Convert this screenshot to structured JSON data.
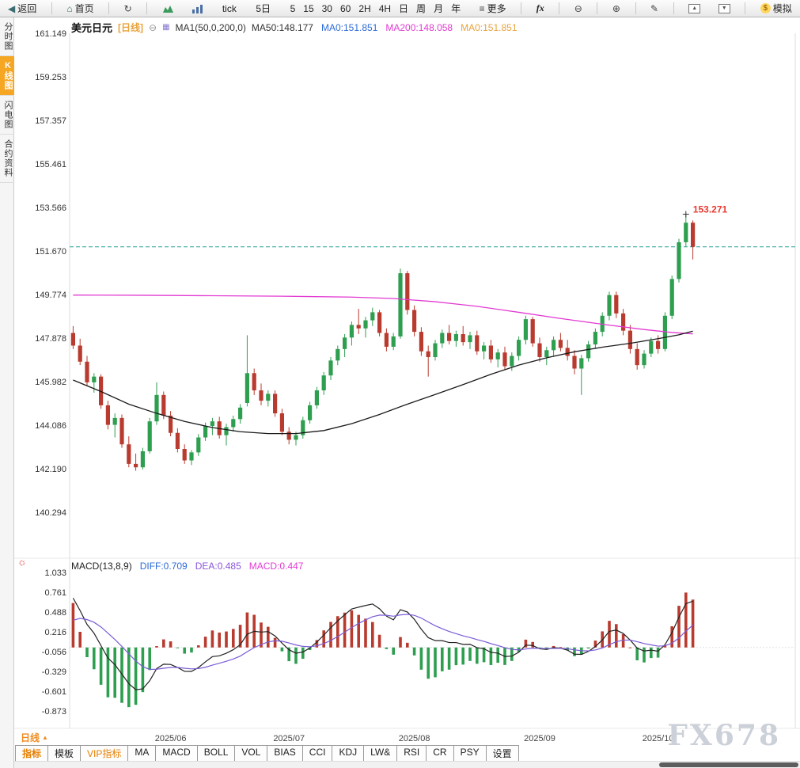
{
  "icons": {
    "back": "◀",
    "home": "⌂",
    "refresh": "↻",
    "more": "≡",
    "zoom_out": "⊖",
    "zoom_in": "⊕",
    "draw": "✎",
    "collapse": "⊖",
    "ma_panel": "▦",
    "sun": "☼",
    "dollar": "$",
    "up_triangle": "▲",
    "down_triangle": "▼"
  },
  "toolbar_top": {
    "back": "返回",
    "home": "首页",
    "tick": "tick",
    "five_day": "5日",
    "periods": [
      "5",
      "15",
      "30",
      "60",
      "2H",
      "4H",
      "日",
      "周",
      "月",
      "年"
    ],
    "more": "更多",
    "fx": "fx",
    "simulate": "模拟"
  },
  "sidebar": {
    "items": [
      {
        "label": "分时图",
        "active": false
      },
      {
        "label": "K线图",
        "active": true
      },
      {
        "label": "闪电图",
        "active": false
      },
      {
        "label": "合约资料",
        "active": false
      }
    ]
  },
  "chart_header": {
    "symbol": "美元日元",
    "period_tag": "[日线]",
    "ma_settings": "MA1(50,0,200,0)",
    "ma_items": [
      {
        "label": "MA50:148.177",
        "color": "#333333"
      },
      {
        "label": "MA0:151.851",
        "color": "#2e6bd6"
      },
      {
        "label": "MA200:148.058",
        "color": "#e23ad2"
      },
      {
        "label": "MA0:151.851",
        "color": "#e8a33d"
      }
    ]
  },
  "macd_header": {
    "title": "MACD(13,8,9)",
    "items": [
      {
        "label": "DIFF:0.709",
        "color": "#2e6bd6"
      },
      {
        "label": "DEA:0.485",
        "color": "#8a56d8"
      },
      {
        "label": "MACD:0.447",
        "color": "#e23ad2"
      }
    ]
  },
  "bottom": {
    "period_label": "日线",
    "tabs": [
      {
        "label": "指标",
        "state": "active"
      },
      {
        "label": "模板",
        "state": "normal"
      },
      {
        "label": "VIP指标",
        "state": "vip"
      },
      {
        "label": "MA",
        "state": "normal"
      },
      {
        "label": "MACD",
        "state": "normal"
      },
      {
        "label": "BOLL",
        "state": "normal"
      },
      {
        "label": "VOL",
        "state": "normal"
      },
      {
        "label": "BIAS",
        "state": "normal"
      },
      {
        "label": "CCI",
        "state": "normal"
      },
      {
        "label": "KDJ",
        "state": "normal"
      },
      {
        "label": "LW&",
        "state": "normal"
      },
      {
        "label": "RSI",
        "state": "normal"
      },
      {
        "label": "CR",
        "state": "normal"
      },
      {
        "label": "PSY",
        "state": "normal"
      },
      {
        "label": "设置",
        "state": "normal"
      }
    ]
  },
  "watermark": "FX678",
  "chart_data": {
    "type": "candlestick+macd",
    "title": "美元日元 日线 (USD/JPY Daily)",
    "y_axis_labels": [
      "161.149",
      "159.253",
      "157.357",
      "155.461",
      "153.566",
      "151.670",
      "149.774",
      "147.878",
      "145.982",
      "144.086",
      "142.190",
      "140.294"
    ],
    "macd_axis_labels": [
      "1.033",
      "0.761",
      "0.488",
      "0.216",
      "-0.056",
      "-0.329",
      "-0.601",
      "-0.873"
    ],
    "x_axis_labels": [
      {
        "label": "2025/06",
        "index": 14
      },
      {
        "label": "2025/07",
        "index": 31
      },
      {
        "label": "2025/08",
        "index": 49
      },
      {
        "label": "2025/09",
        "index": 67
      },
      {
        "label": "2025/10",
        "index": 84
      }
    ],
    "current_price": 151.851,
    "high_marker": {
      "index": 88,
      "price": 153.271,
      "label": "153.271"
    },
    "indicator_values": {
      "ma50": 148.177,
      "ma200": 148.058,
      "diff": 0.709,
      "dea": 0.485,
      "macd": 0.447
    },
    "candles": [
      [
        148.1,
        148.4,
        147.4,
        147.55
      ],
      [
        147.55,
        147.85,
        146.7,
        146.85
      ],
      [
        146.85,
        147.1,
        145.8,
        145.95
      ],
      [
        145.95,
        146.35,
        145.5,
        146.2
      ],
      [
        146.2,
        146.3,
        144.8,
        144.95
      ],
      [
        144.95,
        145.15,
        143.9,
        144.1
      ],
      [
        144.1,
        144.6,
        143.55,
        144.4
      ],
      [
        144.4,
        144.55,
        143.1,
        143.25
      ],
      [
        143.25,
        143.6,
        142.25,
        142.4
      ],
      [
        142.4,
        142.85,
        142.1,
        142.25
      ],
      [
        142.25,
        143.1,
        142.15,
        142.95
      ],
      [
        142.95,
        144.4,
        142.85,
        144.25
      ],
      [
        144.25,
        145.95,
        144.1,
        145.4
      ],
      [
        145.4,
        145.55,
        144.35,
        144.5
      ],
      [
        144.5,
        144.7,
        143.6,
        143.75
      ],
      [
        143.75,
        143.95,
        142.9,
        143.05
      ],
      [
        143.05,
        143.25,
        142.4,
        142.55
      ],
      [
        142.55,
        143.0,
        142.35,
        142.9
      ],
      [
        142.9,
        143.7,
        142.75,
        143.55
      ],
      [
        143.55,
        144.2,
        143.4,
        144.05
      ],
      [
        144.05,
        144.4,
        143.65,
        144.25
      ],
      [
        144.25,
        144.45,
        143.5,
        143.65
      ],
      [
        143.65,
        144.15,
        143.2,
        144.0
      ],
      [
        144.0,
        144.5,
        143.8,
        144.35
      ],
      [
        144.35,
        145.0,
        144.15,
        144.85
      ],
      [
        145.05,
        148.0,
        144.9,
        146.35
      ],
      [
        146.35,
        146.55,
        145.4,
        145.6
      ],
      [
        145.6,
        145.9,
        144.95,
        145.15
      ],
      [
        145.15,
        145.6,
        144.9,
        145.45
      ],
      [
        145.45,
        145.6,
        144.45,
        144.6
      ],
      [
        144.6,
        144.8,
        143.65,
        143.8
      ],
      [
        143.8,
        144.0,
        143.25,
        143.45
      ],
      [
        143.45,
        143.8,
        143.2,
        143.65
      ],
      [
        143.65,
        144.45,
        143.5,
        144.3
      ],
      [
        144.3,
        145.1,
        144.15,
        144.95
      ],
      [
        144.95,
        145.75,
        144.8,
        145.6
      ],
      [
        145.6,
        146.4,
        145.4,
        146.25
      ],
      [
        146.25,
        147.05,
        146.05,
        146.9
      ],
      [
        146.9,
        147.55,
        146.7,
        147.4
      ],
      [
        147.4,
        148.05,
        147.05,
        147.9
      ],
      [
        147.9,
        148.6,
        147.55,
        148.45
      ],
      [
        148.45,
        149.15,
        148.05,
        148.3
      ],
      [
        148.3,
        148.8,
        147.9,
        148.65
      ],
      [
        148.65,
        149.2,
        148.4,
        149.0
      ],
      [
        149.0,
        149.1,
        147.95,
        148.1
      ],
      [
        148.1,
        148.3,
        147.3,
        147.5
      ],
      [
        147.5,
        148.1,
        147.35,
        147.95
      ],
      [
        147.95,
        150.9,
        147.85,
        150.7
      ],
      [
        150.7,
        150.8,
        148.9,
        149.1
      ],
      [
        149.1,
        149.3,
        147.95,
        148.15
      ],
      [
        148.15,
        148.35,
        147.1,
        147.3
      ],
      [
        147.3,
        147.55,
        146.2,
        147.05
      ],
      [
        147.05,
        147.8,
        146.9,
        147.65
      ],
      [
        147.65,
        148.25,
        147.45,
        148.1
      ],
      [
        148.1,
        148.45,
        147.6,
        147.75
      ],
      [
        147.75,
        148.2,
        147.5,
        148.05
      ],
      [
        148.05,
        148.4,
        147.55,
        147.7
      ],
      [
        147.7,
        148.15,
        147.4,
        148.0
      ],
      [
        148.0,
        148.2,
        147.15,
        147.3
      ],
      [
        147.3,
        147.7,
        146.95,
        147.55
      ],
      [
        147.55,
        147.8,
        146.8,
        146.95
      ],
      [
        146.95,
        147.4,
        146.6,
        147.25
      ],
      [
        147.25,
        147.5,
        146.5,
        146.65
      ],
      [
        146.65,
        147.25,
        146.45,
        147.1
      ],
      [
        147.1,
        147.95,
        146.9,
        147.8
      ],
      [
        147.8,
        148.85,
        147.6,
        148.7
      ],
      [
        148.7,
        148.8,
        147.5,
        147.65
      ],
      [
        147.65,
        147.9,
        146.85,
        147.05
      ],
      [
        147.05,
        147.5,
        146.7,
        147.35
      ],
      [
        147.35,
        147.95,
        147.1,
        147.8
      ],
      [
        147.8,
        148.1,
        147.3,
        147.45
      ],
      [
        147.45,
        147.8,
        146.9,
        147.1
      ],
      [
        147.1,
        147.35,
        146.3,
        146.55
      ],
      [
        146.55,
        147.15,
        145.4,
        147.0
      ],
      [
        147.0,
        147.75,
        146.85,
        147.6
      ],
      [
        147.6,
        148.3,
        147.4,
        148.15
      ],
      [
        148.15,
        149.0,
        147.95,
        148.85
      ],
      [
        148.85,
        149.9,
        148.65,
        149.75
      ],
      [
        149.75,
        149.9,
        148.75,
        148.95
      ],
      [
        148.95,
        149.15,
        148.0,
        148.2
      ],
      [
        148.2,
        148.45,
        147.2,
        147.4
      ],
      [
        147.4,
        147.65,
        146.5,
        146.7
      ],
      [
        146.7,
        147.35,
        146.55,
        147.2
      ],
      [
        147.2,
        147.9,
        147.05,
        147.75
      ],
      [
        147.75,
        148.0,
        147.2,
        147.4
      ],
      [
        147.4,
        149.0,
        147.3,
        148.85
      ],
      [
        148.85,
        150.6,
        148.7,
        150.45
      ],
      [
        150.45,
        152.2,
        150.3,
        152.05
      ],
      [
        152.05,
        153.27,
        151.85,
        152.9
      ],
      [
        152.9,
        153.0,
        151.3,
        151.85
      ]
    ],
    "ma50_points": [
      [
        0,
        146.05
      ],
      [
        4,
        145.55
      ],
      [
        8,
        145.0
      ],
      [
        12,
        144.6
      ],
      [
        16,
        144.25
      ],
      [
        20,
        143.98
      ],
      [
        24,
        143.8
      ],
      [
        28,
        143.72
      ],
      [
        32,
        143.72
      ],
      [
        36,
        143.85
      ],
      [
        40,
        144.15
      ],
      [
        44,
        144.55
      ],
      [
        48,
        145.0
      ],
      [
        52,
        145.42
      ],
      [
        56,
        145.85
      ],
      [
        60,
        146.3
      ],
      [
        64,
        146.7
      ],
      [
        68,
        147.02
      ],
      [
        72,
        147.28
      ],
      [
        76,
        147.48
      ],
      [
        80,
        147.65
      ],
      [
        84,
        147.85
      ],
      [
        87,
        148.02
      ],
      [
        89,
        148.18
      ]
    ],
    "ma200_points": [
      [
        0,
        149.75
      ],
      [
        10,
        149.74
      ],
      [
        20,
        149.72
      ],
      [
        30,
        149.7
      ],
      [
        40,
        149.66
      ],
      [
        46,
        149.6
      ],
      [
        52,
        149.46
      ],
      [
        58,
        149.26
      ],
      [
        64,
        149.0
      ],
      [
        70,
        148.73
      ],
      [
        76,
        148.48
      ],
      [
        82,
        148.25
      ],
      [
        86,
        148.12
      ],
      [
        89,
        148.06
      ]
    ],
    "colors": {
      "up": "#2e9e4f",
      "down": "#b93a2e",
      "ma50": "#1a1a1a",
      "ma200": "#e23ad2",
      "current": "#2aa198",
      "hist_pos": "#b93a2e",
      "hist_neg": "#2e9e4f",
      "diff": "#222222",
      "dea": "#7a5cd6",
      "high_text": "#e8392f"
    }
  }
}
